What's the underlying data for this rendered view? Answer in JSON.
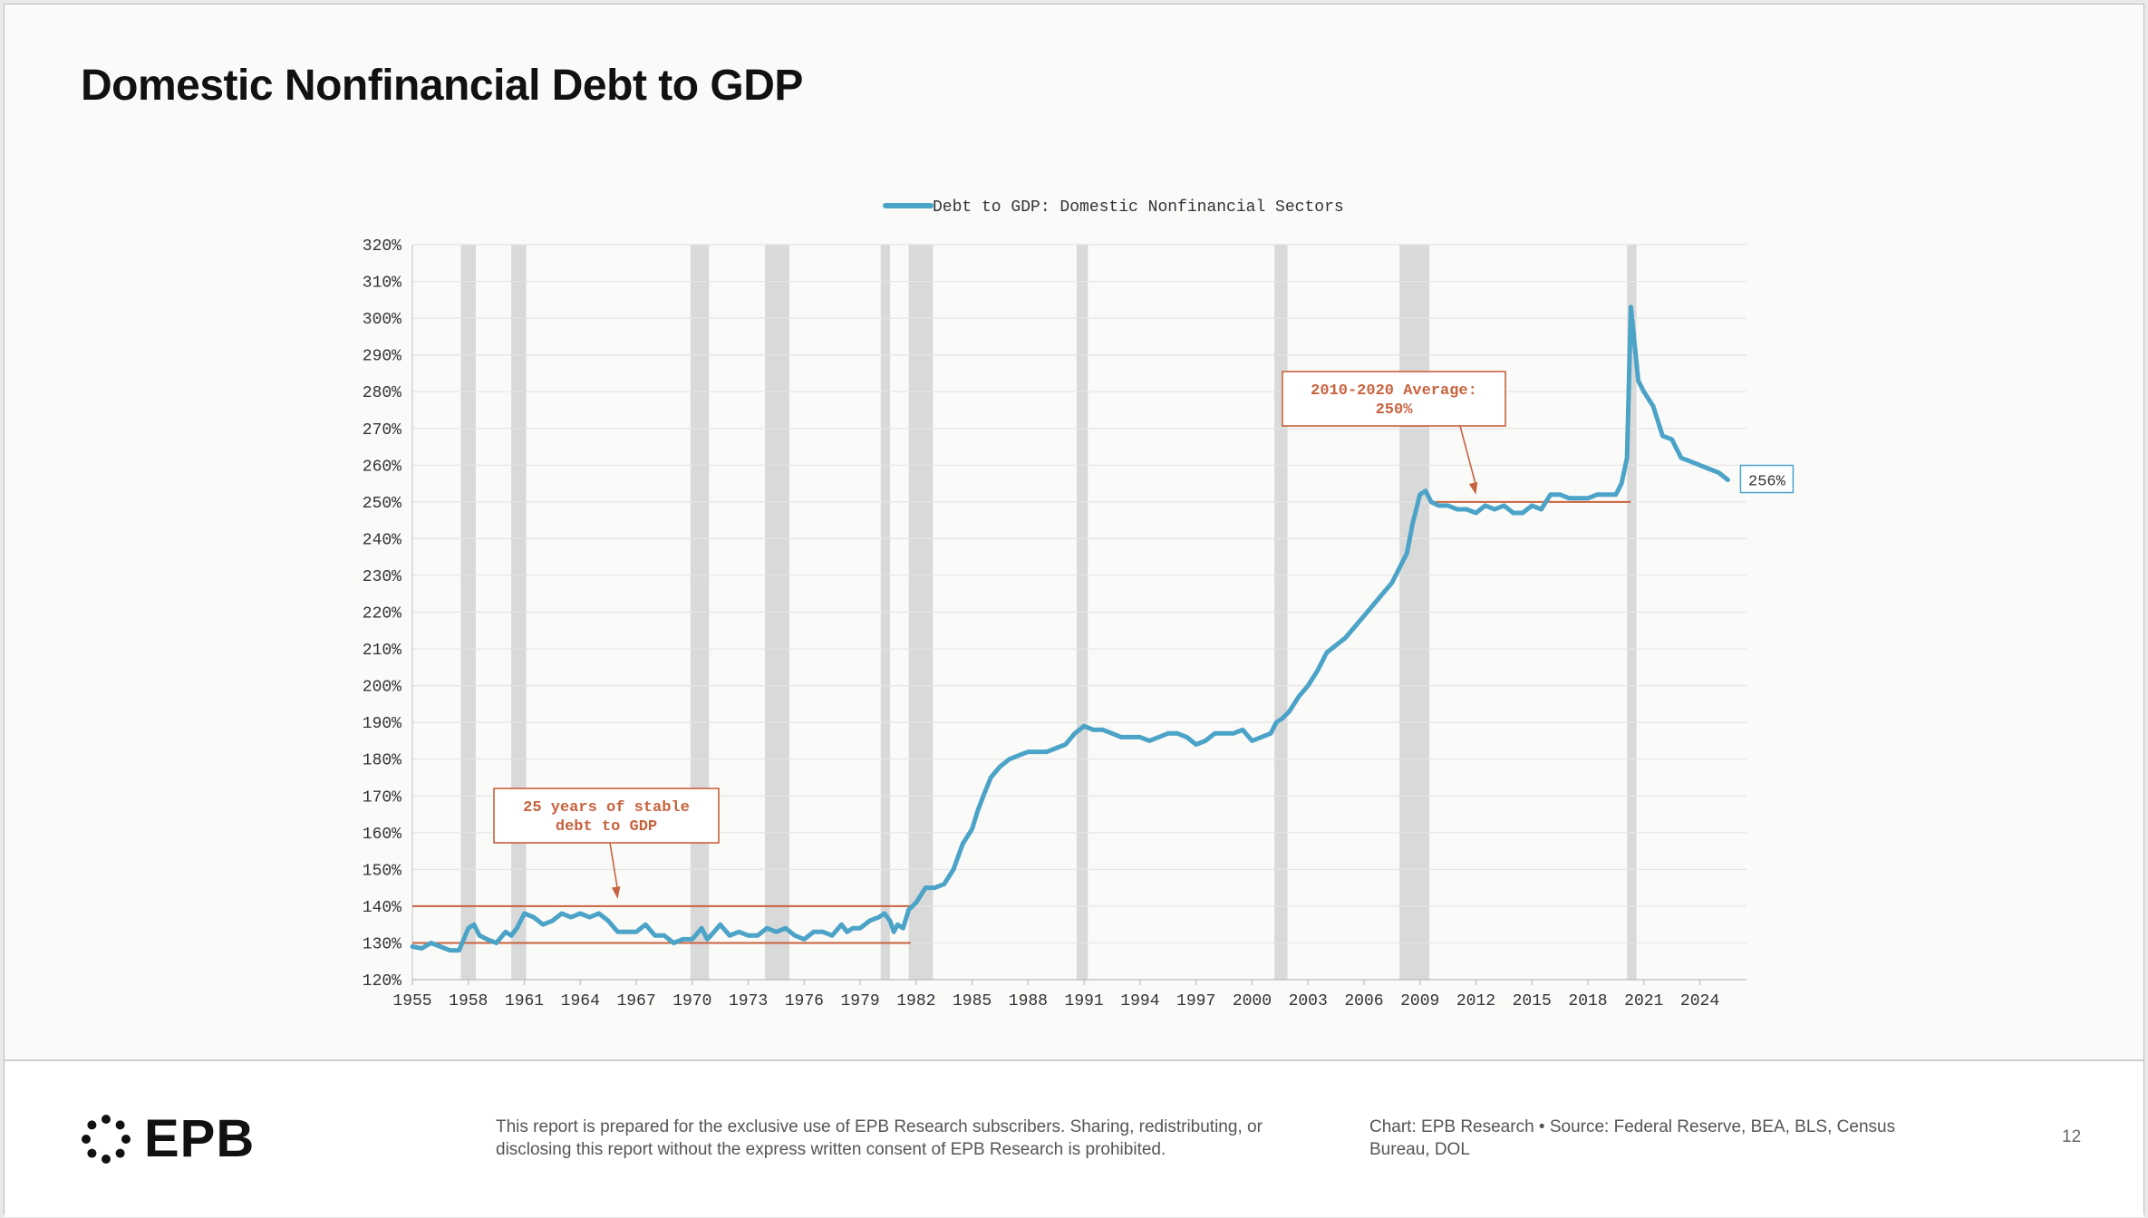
{
  "title": "Domestic Nonfinancial Debt to GDP",
  "footer": {
    "logo_text": "EPB",
    "disclaimer": "This report is prepared for the exclusive use of EPB Research subscribers. Sharing, redistributing, or disclosing this report without the express written consent of EPB Research is prohibited.",
    "source": "Chart: EPB Research • Source: Federal Reserve, BEA, BLS, Census Bureau, DOL",
    "page_number": "12"
  },
  "colors": {
    "series": "#4ba3c7",
    "annotation": "#c8623e",
    "recession": "#d9d9d9",
    "grid": "#e4e4e4"
  },
  "chart_data": {
    "type": "line",
    "legend": [
      "Debt to GDP: Domestic Nonfinancial Sectors"
    ],
    "legend_position": "top-center",
    "grid": true,
    "xlim": [
      1955,
      2026.5
    ],
    "ylim": [
      120,
      320
    ],
    "x_ticks": [
      "1955",
      "1958",
      "1961",
      "1964",
      "1967",
      "1970",
      "1973",
      "1976",
      "1979",
      "1982",
      "1985",
      "1988",
      "1991",
      "1994",
      "1997",
      "2000",
      "2003",
      "2006",
      "2009",
      "2012",
      "2015",
      "2018",
      "2021",
      "2024"
    ],
    "y_ticks": [
      "120%",
      "130%",
      "140%",
      "150%",
      "160%",
      "170%",
      "180%",
      "190%",
      "200%",
      "210%",
      "220%",
      "230%",
      "240%",
      "250%",
      "260%",
      "270%",
      "280%",
      "290%",
      "300%",
      "310%",
      "320%"
    ],
    "recessions": [
      [
        1957.6,
        1958.4
      ],
      [
        1960.3,
        1961.1
      ],
      [
        1969.9,
        1970.9
      ],
      [
        1973.9,
        1975.2
      ],
      [
        1980.1,
        1980.6
      ],
      [
        1981.6,
        1982.9
      ],
      [
        1990.6,
        1991.2
      ],
      [
        2001.2,
        2001.9
      ],
      [
        2007.9,
        2009.5
      ],
      [
        2020.1,
        2020.6
      ]
    ],
    "series": [
      {
        "name": "Debt to GDP: Domestic Nonfinancial Sectors",
        "points": [
          [
            1955,
            129
          ],
          [
            1955.5,
            128.5
          ],
          [
            1956,
            130
          ],
          [
            1956.5,
            129
          ],
          [
            1957,
            128
          ],
          [
            1957.5,
            128
          ],
          [
            1958,
            134
          ],
          [
            1958.3,
            135
          ],
          [
            1958.6,
            132
          ],
          [
            1959,
            131
          ],
          [
            1959.5,
            130
          ],
          [
            1960,
            133
          ],
          [
            1960.3,
            132
          ],
          [
            1960.6,
            134
          ],
          [
            1961,
            138
          ],
          [
            1961.5,
            137
          ],
          [
            1962,
            135
          ],
          [
            1962.5,
            136
          ],
          [
            1963,
            138
          ],
          [
            1963.5,
            137
          ],
          [
            1964,
            138
          ],
          [
            1964.5,
            137
          ],
          [
            1965,
            138
          ],
          [
            1965.5,
            136
          ],
          [
            1966,
            133
          ],
          [
            1966.5,
            133
          ],
          [
            1967,
            133
          ],
          [
            1967.5,
            135
          ],
          [
            1968,
            132
          ],
          [
            1968.5,
            132
          ],
          [
            1969,
            130
          ],
          [
            1969.5,
            131
          ],
          [
            1970,
            131
          ],
          [
            1970.5,
            134
          ],
          [
            1970.8,
            131
          ],
          [
            1971,
            132
          ],
          [
            1971.5,
            135
          ],
          [
            1972,
            132
          ],
          [
            1972.5,
            133
          ],
          [
            1973,
            132
          ],
          [
            1973.5,
            132
          ],
          [
            1974,
            134
          ],
          [
            1974.5,
            133
          ],
          [
            1975,
            134
          ],
          [
            1975.5,
            132
          ],
          [
            1976,
            131
          ],
          [
            1976.5,
            133
          ],
          [
            1977,
            133
          ],
          [
            1977.5,
            132
          ],
          [
            1978,
            135
          ],
          [
            1978.3,
            133
          ],
          [
            1978.6,
            134
          ],
          [
            1979,
            134
          ],
          [
            1979.5,
            136
          ],
          [
            1980,
            137
          ],
          [
            1980.3,
            138
          ],
          [
            1980.6,
            136
          ],
          [
            1980.8,
            133
          ],
          [
            1981,
            135
          ],
          [
            1981.3,
            134
          ],
          [
            1981.6,
            139
          ],
          [
            1982,
            141
          ],
          [
            1982.5,
            145
          ],
          [
            1983,
            145
          ],
          [
            1983.5,
            146
          ],
          [
            1984,
            150
          ],
          [
            1984.5,
            157
          ],
          [
            1985,
            161
          ],
          [
            1985.3,
            166
          ],
          [
            1985.6,
            170
          ],
          [
            1986,
            175
          ],
          [
            1986.5,
            178
          ],
          [
            1987,
            180
          ],
          [
            1987.5,
            181
          ],
          [
            1988,
            182
          ],
          [
            1988.5,
            182
          ],
          [
            1989,
            182
          ],
          [
            1989.5,
            183
          ],
          [
            1990,
            184
          ],
          [
            1990.5,
            187
          ],
          [
            1991,
            189
          ],
          [
            1991.5,
            188
          ],
          [
            1992,
            188
          ],
          [
            1992.5,
            187
          ],
          [
            1993,
            186
          ],
          [
            1993.5,
            186
          ],
          [
            1994,
            186
          ],
          [
            1994.5,
            185
          ],
          [
            1995,
            186
          ],
          [
            1995.5,
            187
          ],
          [
            1996,
            187
          ],
          [
            1996.5,
            186
          ],
          [
            1997,
            184
          ],
          [
            1997.5,
            185
          ],
          [
            1998,
            187
          ],
          [
            1998.5,
            187
          ],
          [
            1999,
            187
          ],
          [
            1999.5,
            188
          ],
          [
            2000,
            185
          ],
          [
            2000.5,
            186
          ],
          [
            2001,
            187
          ],
          [
            2001.3,
            190
          ],
          [
            2001.6,
            191
          ],
          [
            2002,
            193
          ],
          [
            2002.5,
            197
          ],
          [
            2003,
            200
          ],
          [
            2003.5,
            204
          ],
          [
            2003.8,
            207
          ],
          [
            2004,
            209
          ],
          [
            2004.5,
            211
          ],
          [
            2005,
            213
          ],
          [
            2005.5,
            216
          ],
          [
            2006,
            219
          ],
          [
            2006.5,
            222
          ],
          [
            2007,
            225
          ],
          [
            2007.5,
            228
          ],
          [
            2008,
            233
          ],
          [
            2008.3,
            236
          ],
          [
            2008.6,
            244
          ],
          [
            2009,
            252
          ],
          [
            2009.3,
            253
          ],
          [
            2009.6,
            250
          ],
          [
            2010,
            249
          ],
          [
            2010.5,
            249
          ],
          [
            2011,
            248
          ],
          [
            2011.5,
            248
          ],
          [
            2012,
            247
          ],
          [
            2012.5,
            249
          ],
          [
            2013,
            248
          ],
          [
            2013.5,
            249
          ],
          [
            2014,
            247
          ],
          [
            2014.5,
            247
          ],
          [
            2015,
            249
          ],
          [
            2015.5,
            248
          ],
          [
            2016,
            252
          ],
          [
            2016.5,
            252
          ],
          [
            2017,
            251
          ],
          [
            2017.5,
            251
          ],
          [
            2018,
            251
          ],
          [
            2018.5,
            252
          ],
          [
            2019,
            252
          ],
          [
            2019.5,
            252
          ],
          [
            2019.8,
            255
          ],
          [
            2020.1,
            262
          ],
          [
            2020.3,
            303
          ],
          [
            2020.5,
            293
          ],
          [
            2020.7,
            283
          ],
          [
            2021,
            280
          ],
          [
            2021.5,
            276
          ],
          [
            2022,
            268
          ],
          [
            2022.5,
            267
          ],
          [
            2023,
            262
          ],
          [
            2023.5,
            261
          ],
          [
            2024,
            260
          ],
          [
            2024.5,
            259
          ],
          [
            2025,
            258
          ],
          [
            2025.5,
            256
          ]
        ]
      }
    ],
    "annotations": [
      {
        "text": "25 years of stable debt to GDP",
        "lines": [
          130,
          140
        ],
        "x_range": [
          1955,
          1981.7
        ],
        "arrow_to": [
          1966,
          142
        ]
      },
      {
        "text": "2010-2020 Average: 250%",
        "lines": [
          250
        ],
        "x_range": [
          2009.6,
          2020.3
        ],
        "arrow_to": [
          2012,
          252
        ]
      }
    ],
    "annotation_lines": [
      [
        "25 years of stable",
        "debt to GDP"
      ],
      [
        "2010-2020 Average:",
        "250%"
      ]
    ],
    "last_value_label": "256%"
  }
}
